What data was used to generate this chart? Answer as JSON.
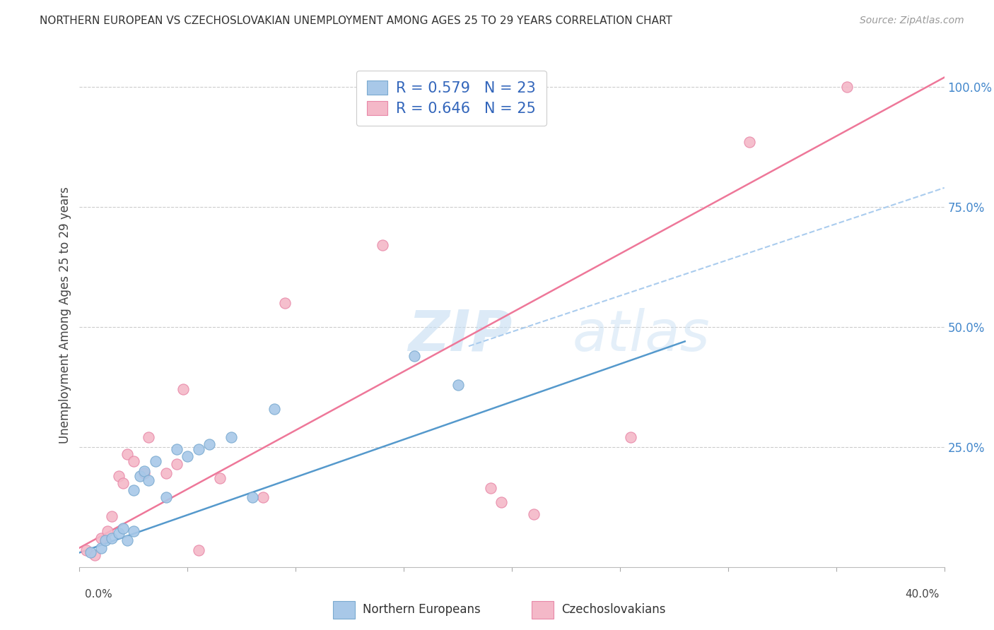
{
  "title": "NORTHERN EUROPEAN VS CZECHOSLOVAKIAN UNEMPLOYMENT AMONG AGES 25 TO 29 YEARS CORRELATION CHART",
  "source": "Source: ZipAtlas.com",
  "ylabel": "Unemployment Among Ages 25 to 29 years",
  "xmin": 0.0,
  "xmax": 0.4,
  "ymin": 0.0,
  "ymax": 1.05,
  "xticks": [
    0.0,
    0.05,
    0.1,
    0.15,
    0.2,
    0.25,
    0.3,
    0.35,
    0.4
  ],
  "yticks": [
    0.0,
    0.25,
    0.5,
    0.75,
    1.0
  ],
  "ytick_labels": [
    "",
    "25.0%",
    "50.0%",
    "75.0%",
    "100.0%"
  ],
  "blue_color": "#a8c8e8",
  "pink_color": "#f4b8c8",
  "blue_edge_color": "#7aaad0",
  "pink_edge_color": "#e888a8",
  "line_blue_color": "#5599cc",
  "line_pink_color": "#ee7799",
  "dashed_color": "#aaccee",
  "blue_R": 0.579,
  "blue_N": 23,
  "pink_R": 0.646,
  "pink_N": 25,
  "legend_label_blue": "Northern Europeans",
  "legend_label_pink": "Czechoslovakians",
  "watermark_zip": "ZIP",
  "watermark_atlas": "atlas",
  "background_color": "#ffffff",
  "grid_color": "#cccccc",
  "blue_scatter_x": [
    0.005,
    0.01,
    0.012,
    0.015,
    0.018,
    0.02,
    0.022,
    0.025,
    0.025,
    0.028,
    0.03,
    0.032,
    0.035,
    0.04,
    0.045,
    0.05,
    0.055,
    0.06,
    0.07,
    0.08,
    0.09,
    0.155,
    0.175
  ],
  "blue_scatter_y": [
    0.03,
    0.04,
    0.055,
    0.06,
    0.07,
    0.08,
    0.055,
    0.075,
    0.16,
    0.19,
    0.2,
    0.18,
    0.22,
    0.145,
    0.245,
    0.23,
    0.245,
    0.255,
    0.27,
    0.145,
    0.33,
    0.44,
    0.38
  ],
  "pink_scatter_x": [
    0.003,
    0.007,
    0.01,
    0.013,
    0.015,
    0.018,
    0.02,
    0.022,
    0.025,
    0.03,
    0.032,
    0.04,
    0.045,
    0.048,
    0.055,
    0.065,
    0.085,
    0.095,
    0.14,
    0.19,
    0.195,
    0.21,
    0.255,
    0.31,
    0.355
  ],
  "pink_scatter_y": [
    0.035,
    0.025,
    0.06,
    0.075,
    0.105,
    0.19,
    0.175,
    0.235,
    0.22,
    0.195,
    0.27,
    0.195,
    0.215,
    0.37,
    0.035,
    0.185,
    0.145,
    0.55,
    0.67,
    0.165,
    0.135,
    0.11,
    0.27,
    0.885,
    1.0
  ],
  "blue_line_x": [
    0.0,
    0.28
  ],
  "blue_line_y": [
    0.03,
    0.47
  ],
  "pink_line_x": [
    0.0,
    0.4
  ],
  "pink_line_y": [
    0.04,
    1.02
  ],
  "dashed_line_x": [
    0.18,
    0.4
  ],
  "dashed_line_y": [
    0.46,
    0.79
  ]
}
